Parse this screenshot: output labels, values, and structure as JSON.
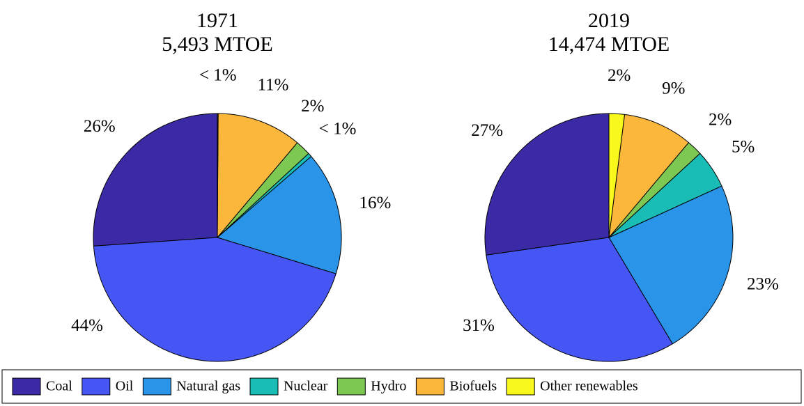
{
  "chart_data": [
    {
      "type": "pie",
      "title": "1971",
      "subtitle": "5,493 MTOE",
      "categories": [
        "Coal",
        "Oil",
        "Natural gas",
        "Nuclear",
        "Hydro",
        "Biofuels",
        "Other renewables"
      ],
      "values": [
        26,
        44,
        16,
        0.5,
        2,
        11,
        0.1
      ],
      "value_labels": [
        "26%",
        "44%",
        "16%",
        "< 1%",
        "2%",
        "11%",
        "< 1%"
      ],
      "colors": [
        "#3a2aa6",
        "#4656f5",
        "#2994e8",
        "#19bdb6",
        "#7dc852",
        "#fbb73b",
        "#f8f81c"
      ]
    },
    {
      "type": "pie",
      "title": "2019",
      "subtitle": "14,474 MTOE",
      "categories": [
        "Coal",
        "Oil",
        "Natural gas",
        "Nuclear",
        "Hydro",
        "Biofuels",
        "Other renewables"
      ],
      "values": [
        27,
        31,
        23,
        5,
        2,
        9,
        2
      ],
      "value_labels": [
        "27%",
        "31%",
        "23%",
        "5%",
        "2%",
        "9%",
        "2%"
      ],
      "colors": [
        "#3a2aa6",
        "#4656f5",
        "#2994e8",
        "#19bdb6",
        "#7dc852",
        "#fbb73b",
        "#f8f81c"
      ]
    }
  ]
}
